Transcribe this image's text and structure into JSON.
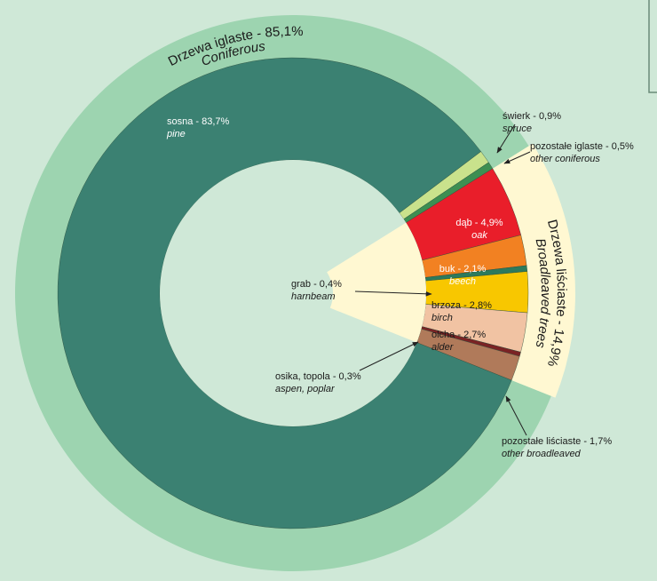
{
  "chart_data": {
    "type": "donut",
    "groups": [
      {
        "name": "Drzewa iglaste - 85,1%",
        "name_en": "Coniferous",
        "value": 85.1,
        "color": "#9dd4b0"
      },
      {
        "name": "Drzewa liściaste - 14,9%",
        "name_en": "Broadleaved trees",
        "value": 14.9,
        "color": "#fff8d2"
      }
    ],
    "labels": [
      "sosna - 83,7%",
      "świerk - 0,9%",
      "pozostałe iglaste - 0,5%",
      "dąb - 4,9%",
      "buk - 2,1%",
      "grab - 0,4%",
      "brzoza - 2,8%",
      "olcha - 2,7%",
      "osika, topola - 0,3%",
      "pozostałe liściaste - 1,7%"
    ],
    "labels_en": [
      "pine",
      "spruce",
      "other coniferous",
      "oak",
      "beech",
      "harnbeam",
      "birch",
      "alder",
      "aspen, poplar",
      "other broadleaved"
    ],
    "values": [
      83.7,
      0.9,
      0.5,
      4.9,
      2.1,
      0.4,
      2.8,
      2.7,
      0.3,
      1.7
    ],
    "colors": [
      "#3b8172",
      "#c9e28c",
      "#3d8f52",
      "#e91e2a",
      "#f28122",
      "#2d7a5c",
      "#f8c700",
      "#f1c3a3",
      "#7a2324",
      "#b07a5a"
    ]
  }
}
